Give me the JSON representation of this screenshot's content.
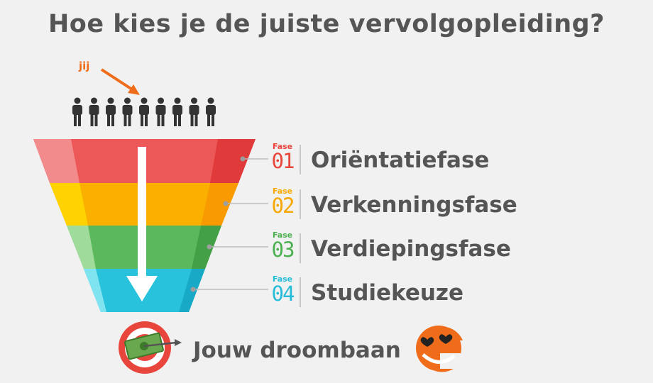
{
  "title": "Hoe kies je de juiste vervolgopleiding?",
  "you_label": "jij",
  "phases": [
    {
      "fase": "Fase",
      "number": "01",
      "name": "Oriëntatiefase",
      "color": "#e8453c"
    },
    {
      "fase": "Fase",
      "number": "02",
      "name": "Verkenningsfase",
      "color": "#f7a800"
    },
    {
      "fase": "Fase",
      "number": "03",
      "name": "Verdiepingsfase",
      "color": "#4caf50"
    },
    {
      "fase": "Fase",
      "number": "04",
      "name": "Studiekeuze",
      "color": "#26bcd7"
    }
  ],
  "goal": "Jouw droombaan",
  "colors": {
    "title": "#555555",
    "accent": "#ef6c1a",
    "band1": "#e8453c",
    "band2": "#f7a800",
    "band3": "#4caf50",
    "band4": "#26bcd7"
  },
  "icons": [
    "person-icon",
    "arrow-icon",
    "target-icon",
    "money-icon",
    "smiley-logo-icon"
  ]
}
